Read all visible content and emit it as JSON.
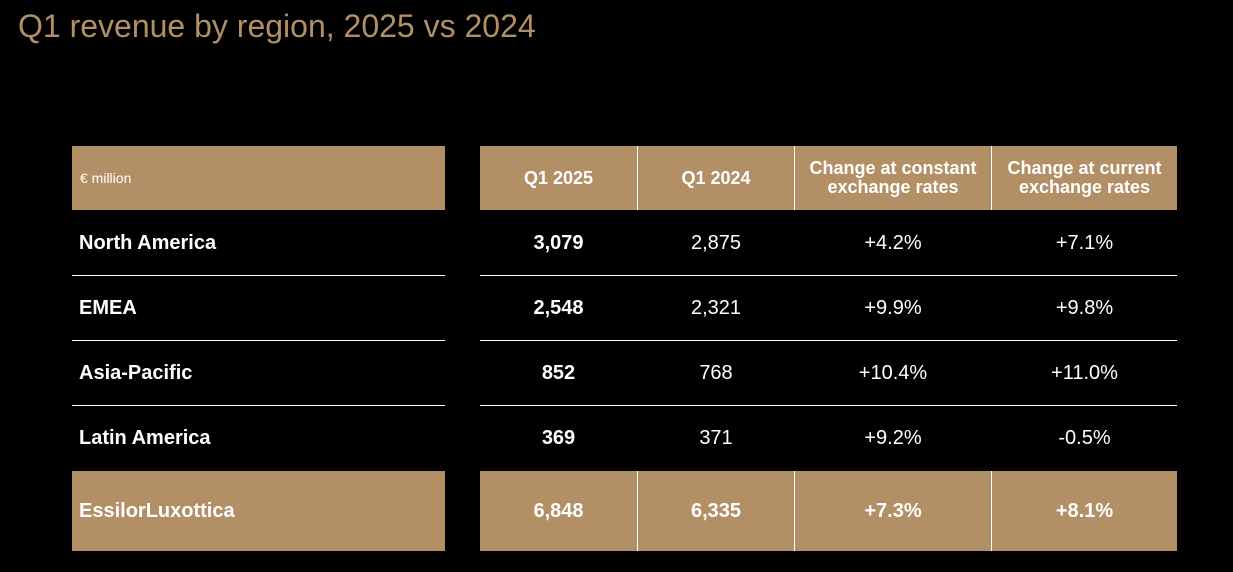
{
  "chart_data": {
    "type": "table",
    "title": "Q1 revenue by region, 2025 vs 2024",
    "unit_label": "€ million",
    "columns": [
      "Q1 2025",
      "Q1 2024",
      "Change at constant exchange rates",
      "Change at current exchange rates"
    ],
    "rows": [
      {
        "label": "North America",
        "q1_2025": "3,079",
        "q1_2024": "2,875",
        "change_constant": "+4.2%",
        "change_current": "+7.1%"
      },
      {
        "label": "EMEA",
        "q1_2025": "2,548",
        "q1_2024": "2,321",
        "change_constant": "+9.9%",
        "change_current": "+9.8%"
      },
      {
        "label": "Asia-Pacific",
        "q1_2025": "852",
        "q1_2024": "768",
        "change_constant": "+10.4%",
        "change_current": "+11.0%"
      },
      {
        "label": "Latin America",
        "q1_2025": "369",
        "q1_2024": "371",
        "change_constant": "+9.2%",
        "change_current": "-0.5%"
      }
    ],
    "total": {
      "label": "EssilorLuxottica",
      "q1_2025": "6,848",
      "q1_2024": "6,335",
      "change_constant": "+7.3%",
      "change_current": "+8.1%"
    },
    "colors": {
      "accent": "#b38f65",
      "background": "#000000",
      "text": "#ffffff"
    }
  }
}
